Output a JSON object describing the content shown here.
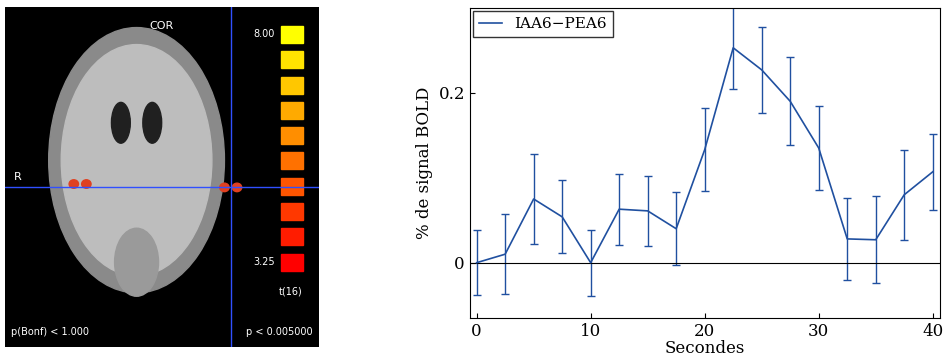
{
  "brain_panel": {
    "view": "COR",
    "side": "R",
    "colorbar": {
      "range": [
        3.25,
        8.0
      ],
      "ticks": [
        {
          "value": 3.25,
          "label": "3.25"
        },
        {
          "value": 8.0,
          "label": "8.00"
        }
      ],
      "label": "t(16)"
    },
    "bottom_left": "p(Bonf) < 1.000",
    "bottom_right": "p < 0.005000"
  },
  "chart_data": {
    "type": "line",
    "x": [
      0,
      2.5,
      5,
      7.5,
      10,
      12.5,
      15,
      17.5,
      20,
      22.5,
      25,
      27.5,
      30,
      32.5,
      35,
      37.5,
      40
    ],
    "series": [
      {
        "name": "IAA6−PEA6",
        "color": "#2050a0",
        "values": [
          0.0,
          0.01,
          0.075,
          0.054,
          0.0,
          0.063,
          0.061,
          0.04,
          0.133,
          0.253,
          0.227,
          0.19,
          0.135,
          0.028,
          0.027,
          0.08,
          0.107
        ],
        "errors": [
          0.038,
          0.047,
          0.053,
          0.043,
          0.039,
          0.042,
          0.041,
          0.043,
          0.049,
          0.049,
          0.051,
          0.052,
          0.05,
          0.048,
          0.051,
          0.053,
          0.045
        ]
      }
    ],
    "baseline": 0,
    "x_label": "Secondes",
    "y_label": "% de signal BOLD",
    "xlim": [
      -0.6,
      40.6
    ],
    "xticks": [
      0,
      10,
      20,
      30,
      40
    ],
    "ylim": [
      -0.065,
      0.3
    ],
    "yticks": [
      0,
      0.2
    ],
    "legend": "upper left"
  }
}
